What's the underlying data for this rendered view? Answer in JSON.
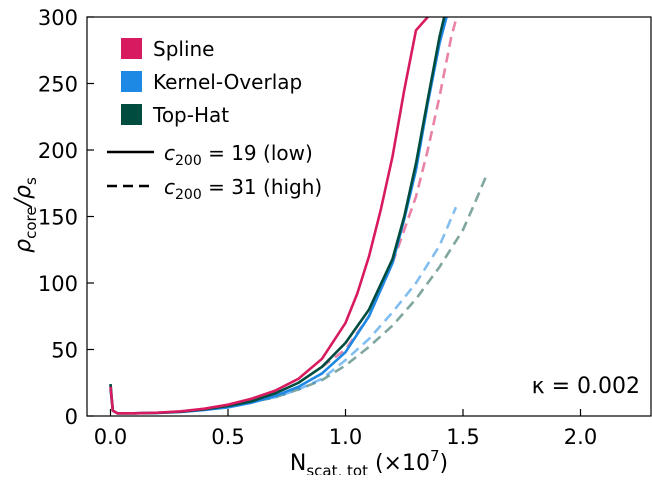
{
  "chart_data": {
    "type": "line",
    "xlabel_main": "N",
    "xlabel_sub": "scat, tot",
    "xlabel_suffix": " (×10",
    "xlabel_exp": "7",
    "xlabel_close": ")",
    "ylabel_main": "ρ",
    "ylabel_sub1": "core",
    "ylabel_mid": "/ρ",
    "ylabel_sub2": "s",
    "xlim": [
      -0.1,
      2.3
    ],
    "ylim": [
      0,
      300
    ],
    "xticks": [
      0.0,
      0.5,
      1.0,
      1.5,
      2.0
    ],
    "xtick_labels": [
      "0.0",
      "0.5",
      "1.0",
      "1.5",
      "2.0"
    ],
    "yticks": [
      0,
      50,
      100,
      150,
      200,
      250,
      300
    ],
    "ytick_labels": [
      "0",
      "50",
      "100",
      "150",
      "200",
      "250",
      "300"
    ],
    "grid": false,
    "legend_placement": "top-left",
    "annotation": "κ = 0.002",
    "legend": {
      "methods": [
        {
          "label": "Spline",
          "color": "#d81b60"
        },
        {
          "label": "Kernel-Overlap",
          "color": "#1e88e5"
        },
        {
          "label": "Top-Hat",
          "color": "#004d40"
        }
      ],
      "styles": [
        {
          "label_main": "c",
          "label_sub": "200",
          "label_rest": " = 19 (low)",
          "dash": "solid"
        },
        {
          "label_main": "c",
          "label_sub": "200",
          "label_rest": " = 31 (high)",
          "dash": "dashed"
        }
      ]
    },
    "series": [
      {
        "method": "Spline",
        "concentration": "low",
        "color": "#d81b60",
        "dash": "solid",
        "opacity": 1.0,
        "x": [
          0.0,
          0.01,
          0.03,
          0.1,
          0.2,
          0.3,
          0.4,
          0.5,
          0.6,
          0.7,
          0.8,
          0.9,
          1.0,
          1.05,
          1.1,
          1.15,
          1.2,
          1.25,
          1.3,
          1.35
        ],
        "y": [
          22,
          4,
          2,
          2,
          2.5,
          3.5,
          5.5,
          8.5,
          13,
          19,
          28,
          43,
          70,
          92,
          120,
          155,
          195,
          245,
          290,
          300
        ]
      },
      {
        "method": "Spline",
        "concentration": "high",
        "color": "#d81b60",
        "dash": "dashed",
        "opacity": 0.55,
        "x": [
          0.9,
          1.0,
          1.1,
          1.2,
          1.3,
          1.35,
          1.4,
          1.45,
          1.47
        ],
        "y": [
          37,
          50,
          75,
          115,
          165,
          200,
          240,
          285,
          298
        ]
      },
      {
        "method": "Kernel-Overlap",
        "concentration": "low",
        "color": "#1e88e5",
        "dash": "solid",
        "opacity": 1.0,
        "x": [
          0.0,
          0.01,
          0.03,
          0.1,
          0.2,
          0.3,
          0.4,
          0.5,
          0.6,
          0.7,
          0.8,
          0.9,
          1.0,
          1.1,
          1.2,
          1.25,
          1.3,
          1.35,
          1.4,
          1.43
        ],
        "y": [
          20,
          4,
          2,
          2,
          2.3,
          3,
          4.5,
          6.5,
          10,
          15,
          22,
          32,
          48,
          75,
          115,
          148,
          185,
          235,
          280,
          300
        ]
      },
      {
        "method": "Kernel-Overlap",
        "concentration": "high",
        "color": "#1e88e5",
        "dash": "dashed",
        "opacity": 0.55,
        "x": [
          0.6,
          0.7,
          0.8,
          0.9,
          1.0,
          1.1,
          1.2,
          1.3,
          1.4,
          1.47
        ],
        "y": [
          11,
          14,
          20,
          28,
          42,
          58,
          78,
          100,
          128,
          157
        ]
      },
      {
        "method": "Top-Hat",
        "concentration": "low",
        "color": "#004d40",
        "dash": "solid",
        "opacity": 1.0,
        "x": [
          0.0,
          0.01,
          0.03,
          0.1,
          0.2,
          0.3,
          0.4,
          0.5,
          0.6,
          0.7,
          0.8,
          0.9,
          1.0,
          1.1,
          1.2,
          1.25,
          1.3,
          1.35,
          1.4,
          1.42
        ],
        "y": [
          24,
          4,
          2,
          2,
          2.4,
          3.2,
          5,
          7.5,
          11,
          17,
          25,
          37,
          55,
          80,
          118,
          150,
          190,
          238,
          285,
          300
        ]
      },
      {
        "method": "Top-Hat",
        "concentration": "high",
        "color": "#004d40",
        "dash": "dashed",
        "opacity": 0.5,
        "x": [
          0.0,
          0.01,
          0.03,
          0.1,
          0.2,
          0.3,
          0.4,
          0.5,
          0.6,
          0.7,
          0.8,
          0.9,
          1.0,
          1.1,
          1.2,
          1.3,
          1.4,
          1.5,
          1.55,
          1.6
        ],
        "y": [
          24,
          4,
          2,
          2,
          2.4,
          3.2,
          5,
          7.5,
          10.5,
          14,
          20,
          27,
          38,
          52,
          68,
          88,
          112,
          140,
          160,
          181
        ]
      }
    ]
  }
}
